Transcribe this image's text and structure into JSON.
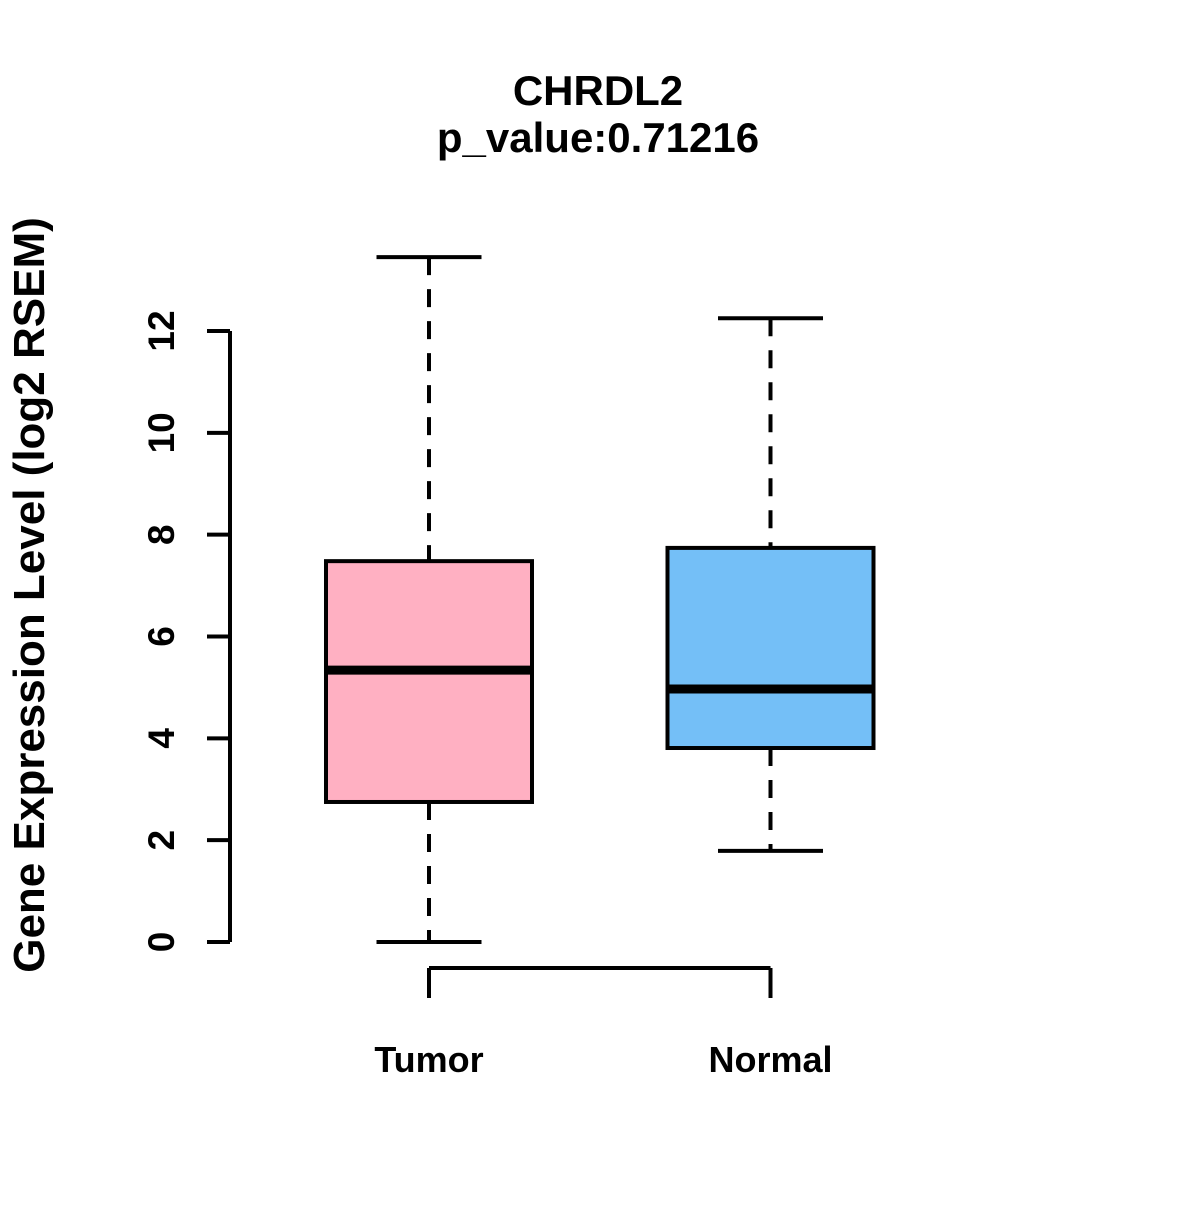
{
  "header": {
    "title": "CHRDL2",
    "subtitle": "p_value:0.71216"
  },
  "chart_data": {
    "type": "boxplot",
    "title": "CHRDL2",
    "subtitle": "p_value:0.71216",
    "xlabel": "",
    "ylabel": "Gene Expression Level (log2 RSEM)",
    "categories": [
      "Tumor",
      "Normal"
    ],
    "y_ticks": [
      0,
      2,
      4,
      6,
      8,
      10,
      12
    ],
    "ylim": [
      0,
      13.6
    ],
    "grid": false,
    "legend_position": "none",
    "line_color": "#000000",
    "background_color": "#FFFFFF",
    "series": [
      {
        "name": "Tumor",
        "color": "#FFB0C2",
        "lower_whisker": 0.0,
        "q1": 2.75,
        "median": 5.34,
        "q3": 7.48,
        "upper_whisker": 13.45
      },
      {
        "name": "Normal",
        "color": "#74BFF7",
        "lower_whisker": 1.79,
        "q1": 3.81,
        "median": 4.97,
        "q3": 7.74,
        "upper_whisker": 12.25
      }
    ]
  }
}
